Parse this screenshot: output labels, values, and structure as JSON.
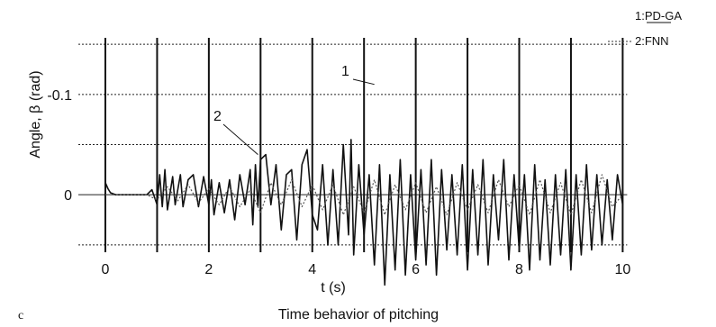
{
  "panel_label": "c",
  "caption": "Time behavior of pitching",
  "chart_data": {
    "type": "line",
    "title": "",
    "xlabel": "t (s)",
    "ylabel": "Angle, β (rad)",
    "xlim": [
      0,
      10.15
    ],
    "ylim": [
      -0.16,
      0.06
    ],
    "x_ticks": [
      0,
      2,
      4,
      6,
      8,
      10
    ],
    "x_tick_labels": [
      "0",
      "2",
      "4",
      "6",
      "8",
      "10"
    ],
    "y_ticks": [
      -0.1,
      0
    ],
    "y_tick_labels": [
      "-0.1",
      "0"
    ],
    "dotted_gridlines_y": [
      -0.15,
      -0.1,
      -0.05,
      0.05
    ],
    "vertical_markers_x": [
      0,
      1,
      2,
      3,
      4,
      5,
      6,
      7,
      8,
      9,
      10
    ],
    "legend": {
      "position": "top-right",
      "entries": [
        {
          "label": "1:PD-GA",
          "style": "solid"
        },
        {
          "label": "2:FNN",
          "style": "dotted"
        }
      ]
    },
    "annotations": [
      {
        "text": "1",
        "points_to_series": "1:PD-GA",
        "x": 5.2,
        "y": -0.11
      },
      {
        "text": "2",
        "points_to_series": "2:FNN",
        "x": 2.95,
        "y": -0.04
      }
    ],
    "series": [
      {
        "name": "1:PD-GA",
        "style": "solid",
        "color": "#111111",
        "x": [
          0,
          0.05,
          0.1,
          0.2,
          0.4,
          0.6,
          0.8,
          0.9,
          1.0,
          1.05,
          1.1,
          1.15,
          1.2,
          1.3,
          1.35,
          1.45,
          1.5,
          1.6,
          1.7,
          1.8,
          1.9,
          2.0,
          2.05,
          2.1,
          2.2,
          2.3,
          2.4,
          2.5,
          2.6,
          2.7,
          2.8,
          2.85,
          2.9,
          2.95,
          3.0,
          3.1,
          3.2,
          3.3,
          3.4,
          3.5,
          3.6,
          3.7,
          3.8,
          3.9,
          4.0,
          4.1,
          4.2,
          4.3,
          4.4,
          4.5,
          4.6,
          4.7,
          4.75,
          4.8,
          4.9,
          5.0,
          5.1,
          5.2,
          5.3,
          5.4,
          5.5,
          5.6,
          5.7,
          5.8,
          5.9,
          6.0,
          6.1,
          6.2,
          6.3,
          6.4,
          6.5,
          6.6,
          6.7,
          6.8,
          6.9,
          7.0,
          7.1,
          7.2,
          7.3,
          7.4,
          7.5,
          7.6,
          7.7,
          7.8,
          7.9,
          8.0,
          8.1,
          8.2,
          8.3,
          8.4,
          8.5,
          8.6,
          8.7,
          8.8,
          8.9,
          9.0,
          9.1,
          9.2,
          9.3,
          9.4,
          9.5,
          9.6,
          9.7,
          9.8,
          9.9,
          10.0
        ],
        "y": [
          -0.012,
          -0.006,
          -0.002,
          0.0,
          0.0,
          0.0,
          0.0,
          -0.005,
          0.01,
          -0.02,
          0.012,
          -0.025,
          0.015,
          -0.018,
          0.01,
          -0.02,
          0.012,
          -0.015,
          -0.02,
          0.012,
          -0.018,
          0.01,
          -0.015,
          0.02,
          -0.012,
          0.018,
          -0.015,
          0.025,
          -0.02,
          0.01,
          -0.025,
          0.03,
          -0.03,
          0.012,
          -0.035,
          -0.04,
          0.01,
          -0.03,
          0.035,
          -0.02,
          -0.025,
          0.045,
          -0.03,
          -0.045,
          0.02,
          0.035,
          -0.03,
          0.05,
          -0.025,
          0.05,
          -0.05,
          0.04,
          -0.055,
          0.06,
          -0.03,
          0.04,
          -0.02,
          0.07,
          -0.03,
          0.09,
          -0.02,
          0.075,
          -0.035,
          0.08,
          -0.02,
          0.065,
          -0.025,
          0.07,
          -0.035,
          0.08,
          -0.025,
          0.055,
          -0.02,
          0.06,
          -0.03,
          0.075,
          -0.025,
          0.06,
          -0.035,
          0.07,
          -0.02,
          0.045,
          -0.035,
          0.065,
          -0.02,
          0.055,
          -0.02,
          0.075,
          -0.03,
          0.065,
          -0.015,
          0.07,
          -0.02,
          0.06,
          -0.025,
          0.075,
          -0.02,
          0.06,
          -0.03,
          0.055,
          -0.02,
          0.05,
          -0.015,
          0.045,
          -0.02,
          0.01
        ]
      },
      {
        "name": "2:FNN",
        "style": "dotted",
        "color": "#555555",
        "x": [
          0,
          0.2,
          0.5,
          0.8,
          1.0,
          1.2,
          1.4,
          1.6,
          1.8,
          2.0,
          2.2,
          2.4,
          2.6,
          2.8,
          3.0,
          3.2,
          3.4,
          3.6,
          3.8,
          4.0,
          4.2,
          4.4,
          4.6,
          4.8,
          5.0,
          5.2,
          5.4,
          5.6,
          5.8,
          6.0,
          6.2,
          6.4,
          6.6,
          6.8,
          7.0,
          7.2,
          7.4,
          7.6,
          7.8,
          8.0,
          8.2,
          8.4,
          8.6,
          8.8,
          9.0,
          9.2,
          9.4,
          9.6,
          9.8,
          10.0
        ],
        "y": [
          0.0,
          0.0,
          0.0,
          0.0,
          0.005,
          -0.008,
          0.006,
          -0.01,
          0.008,
          -0.006,
          0.01,
          -0.008,
          0.012,
          -0.005,
          0.018,
          -0.012,
          0.01,
          -0.015,
          0.012,
          -0.01,
          0.015,
          -0.01,
          0.02,
          -0.008,
          0.018,
          -0.015,
          0.02,
          -0.01,
          0.015,
          -0.012,
          0.018,
          -0.008,
          0.02,
          -0.012,
          0.015,
          -0.01,
          0.018,
          -0.015,
          0.012,
          -0.01,
          0.02,
          -0.015,
          0.018,
          -0.012,
          0.02,
          -0.015,
          0.018,
          -0.02,
          0.012,
          0.0
        ]
      }
    ]
  }
}
